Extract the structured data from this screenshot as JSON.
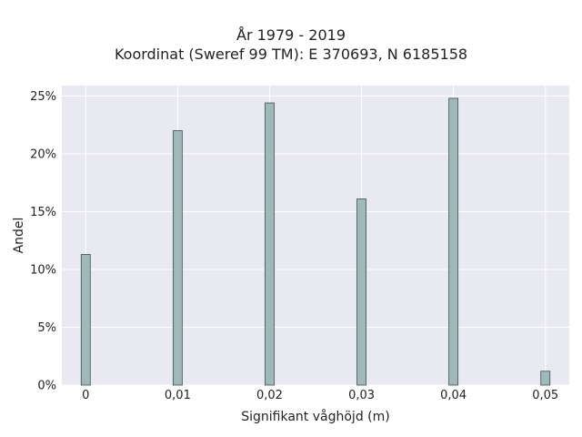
{
  "chart_data": {
    "type": "bar",
    "title": "År 1979 - 2019",
    "subtitle": "Koordinat (Sweref 99 TM): E 370693, N 6185158",
    "xlabel": "Signifikant våghöjd (m)",
    "ylabel": "Andel",
    "x": [
      0,
      0.01,
      0.02,
      0.03,
      0.04,
      0.05
    ],
    "values": [
      11.3,
      22.0,
      24.4,
      16.1,
      24.8,
      1.2
    ],
    "x_tick_values": [
      0,
      0.01,
      0.02,
      0.03,
      0.04,
      0.05
    ],
    "x_tick_labels": [
      "0",
      "0,01",
      "0,02",
      "0,03",
      "0,04",
      "0,05"
    ],
    "y_tick_values": [
      0,
      5,
      10,
      15,
      20,
      25
    ],
    "y_tick_labels": [
      "0%",
      "5%",
      "10%",
      "15%",
      "20%",
      "25%"
    ],
    "xlim": [
      -0.0026,
      0.0526
    ],
    "ylim": [
      0,
      25.9
    ],
    "grid": true,
    "colors": {
      "bar_fill": "#a0b8b9",
      "bar_stroke": "#3d4f50",
      "plot_bg": "#e9e9f1",
      "grid": "#ffffff"
    }
  }
}
